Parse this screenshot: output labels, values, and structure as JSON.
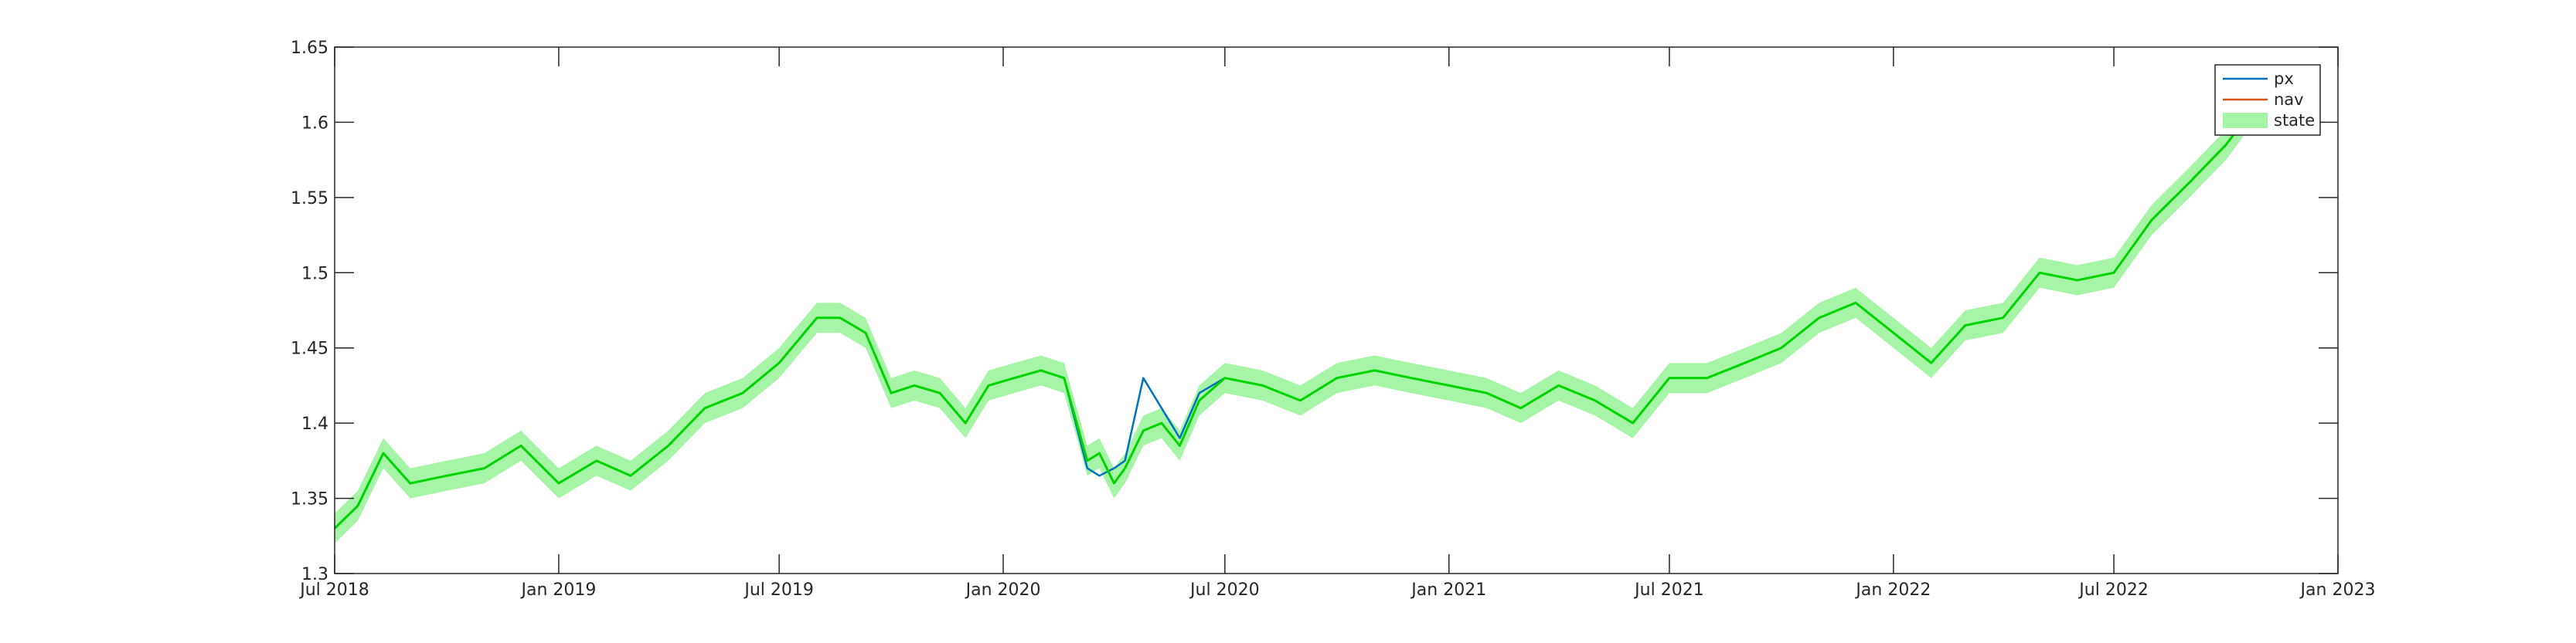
{
  "chart_data": {
    "type": "line",
    "title": "",
    "xlabel": "",
    "ylabel": "",
    "xlim": [
      "2018-07-01",
      "2023-01-01"
    ],
    "ylim": [
      1.3,
      1.65
    ],
    "grid": false,
    "legend_position": "top-right",
    "x_ticks": [
      "Jul 2018",
      "Jan 2019",
      "Jul 2019",
      "Jan 2020",
      "Jul 2020",
      "Jan 2021",
      "Jul 2021",
      "Jan 2022",
      "Jul 2022",
      "Jan 2023"
    ],
    "y_ticks": [
      "1.3",
      "1.35",
      "1.4",
      "1.45",
      "1.5",
      "1.55",
      "1.6",
      "1.65"
    ],
    "x": [
      "2018-07-01",
      "2018-07-20",
      "2018-08-10",
      "2018-09-01",
      "2018-10-01",
      "2018-11-01",
      "2018-12-01",
      "2019-01-01",
      "2019-02-01",
      "2019-03-01",
      "2019-04-01",
      "2019-05-01",
      "2019-06-01",
      "2019-07-01",
      "2019-08-01",
      "2019-08-20",
      "2019-09-10",
      "2019-10-01",
      "2019-10-20",
      "2019-11-10",
      "2019-12-01",
      "2019-12-20",
      "2020-01-10",
      "2020-02-01",
      "2020-02-20",
      "2020-03-10",
      "2020-03-20",
      "2020-04-01",
      "2020-04-10",
      "2020-04-25",
      "2020-05-10",
      "2020-05-25",
      "2020-06-10",
      "2020-07-01",
      "2020-08-01",
      "2020-09-01",
      "2020-10-01",
      "2020-11-01",
      "2020-12-01",
      "2021-01-01",
      "2021-02-01",
      "2021-03-01",
      "2021-04-01",
      "2021-05-01",
      "2021-06-01",
      "2021-07-01",
      "2021-08-01",
      "2021-09-01",
      "2021-10-01",
      "2021-11-01",
      "2021-12-01",
      "2022-01-01",
      "2022-02-01",
      "2022-03-01",
      "2022-04-01",
      "2022-05-01",
      "2022-06-01",
      "2022-07-01",
      "2022-08-01",
      "2022-09-01",
      "2022-10-01",
      "2022-10-15"
    ],
    "series": [
      {
        "name": "px",
        "color": "#0072BD",
        "values": [
          1.33,
          1.345,
          1.38,
          1.36,
          1.365,
          1.37,
          1.385,
          1.36,
          1.375,
          1.365,
          1.385,
          1.41,
          1.42,
          1.44,
          1.47,
          1.47,
          1.46,
          1.42,
          1.425,
          1.42,
          1.4,
          1.425,
          1.43,
          1.435,
          1.43,
          1.37,
          1.365,
          1.37,
          1.375,
          1.43,
          1.41,
          1.39,
          1.42,
          1.43,
          1.425,
          1.415,
          1.43,
          1.435,
          1.43,
          1.425,
          1.42,
          1.41,
          1.425,
          1.415,
          1.4,
          1.43,
          1.43,
          1.44,
          1.45,
          1.47,
          1.48,
          1.46,
          1.44,
          1.465,
          1.47,
          1.5,
          1.495,
          1.5,
          1.535,
          1.56,
          1.585,
          1.6
        ]
      },
      {
        "name": "nav",
        "color": "#D95319",
        "values": [
          1.33,
          1.345,
          1.38,
          1.36,
          1.365,
          1.37,
          1.385,
          1.36,
          1.375,
          1.365,
          1.385,
          1.41,
          1.42,
          1.44,
          1.47,
          1.47,
          1.46,
          1.42,
          1.425,
          1.42,
          1.4,
          1.425,
          1.43,
          1.435,
          1.43,
          1.375,
          1.38,
          1.36,
          1.37,
          1.395,
          1.4,
          1.385,
          1.415,
          1.43,
          1.425,
          1.415,
          1.43,
          1.435,
          1.43,
          1.425,
          1.42,
          1.41,
          1.425,
          1.415,
          1.4,
          1.43,
          1.43,
          1.44,
          1.45,
          1.47,
          1.48,
          1.46,
          1.44,
          1.465,
          1.47,
          1.5,
          1.495,
          1.5,
          1.535,
          1.56,
          1.585,
          1.6
        ]
      },
      {
        "name": "state",
        "color": "#00D400",
        "band_color": "#A6F5A6",
        "band_halfwidth": 0.01,
        "values": [
          1.33,
          1.345,
          1.38,
          1.36,
          1.365,
          1.37,
          1.385,
          1.36,
          1.375,
          1.365,
          1.385,
          1.41,
          1.42,
          1.44,
          1.47,
          1.47,
          1.46,
          1.42,
          1.425,
          1.42,
          1.4,
          1.425,
          1.43,
          1.435,
          1.43,
          1.375,
          1.38,
          1.36,
          1.37,
          1.395,
          1.4,
          1.385,
          1.415,
          1.43,
          1.425,
          1.415,
          1.43,
          1.435,
          1.43,
          1.425,
          1.42,
          1.41,
          1.425,
          1.415,
          1.4,
          1.43,
          1.43,
          1.44,
          1.45,
          1.47,
          1.48,
          1.46,
          1.44,
          1.465,
          1.47,
          1.5,
          1.495,
          1.5,
          1.535,
          1.56,
          1.585,
          1.6
        ]
      }
    ]
  }
}
